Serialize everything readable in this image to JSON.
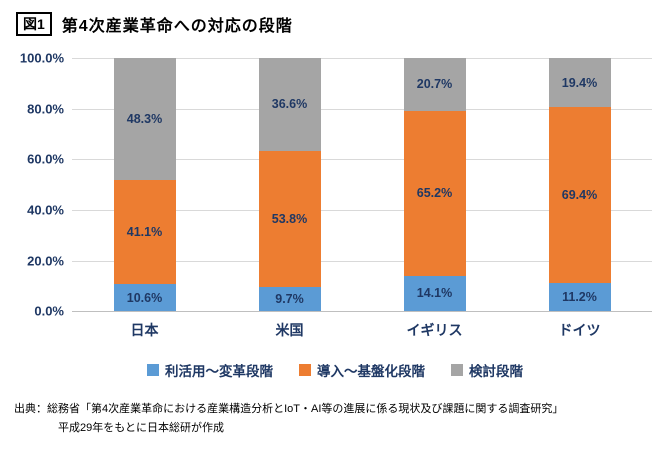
{
  "figure": {
    "tag": "図1",
    "title": "第4次産業革命への対応の段階"
  },
  "chart_data": {
    "type": "bar",
    "stacked": true,
    "percent_stacked": true,
    "title": "第4次産業革命への対応の段階",
    "categories": [
      "日本",
      "米国",
      "イギリス",
      "ドイツ"
    ],
    "series": [
      {
        "name": "利活用～変革段階",
        "color": "#5B9BD5",
        "values": [
          10.6,
          9.7,
          14.1,
          11.2
        ]
      },
      {
        "name": "導入～基盤化段階",
        "color": "#ED7D31",
        "values": [
          41.1,
          53.8,
          65.2,
          69.4
        ]
      },
      {
        "name": "検討段階",
        "color": "#A5A5A5",
        "values": [
          48.3,
          36.6,
          20.7,
          19.4
        ]
      }
    ],
    "y_ticks": [
      "100.0%",
      "80.0%",
      "60.0%",
      "40.0%",
      "20.0%",
      "0.0%"
    ],
    "ylim": [
      0,
      100
    ],
    "grid": true,
    "legend_position": "bottom",
    "data_label_color": "#1F3864",
    "axis_label_color": "#1F3864"
  },
  "source": {
    "line1": "出典：総務省「第4次産業革命における産業構造分析とIoT・AI等の進展に係る現状及び課題に関する調査研究」",
    "line2": "平成29年をもとに日本総研が作成"
  }
}
